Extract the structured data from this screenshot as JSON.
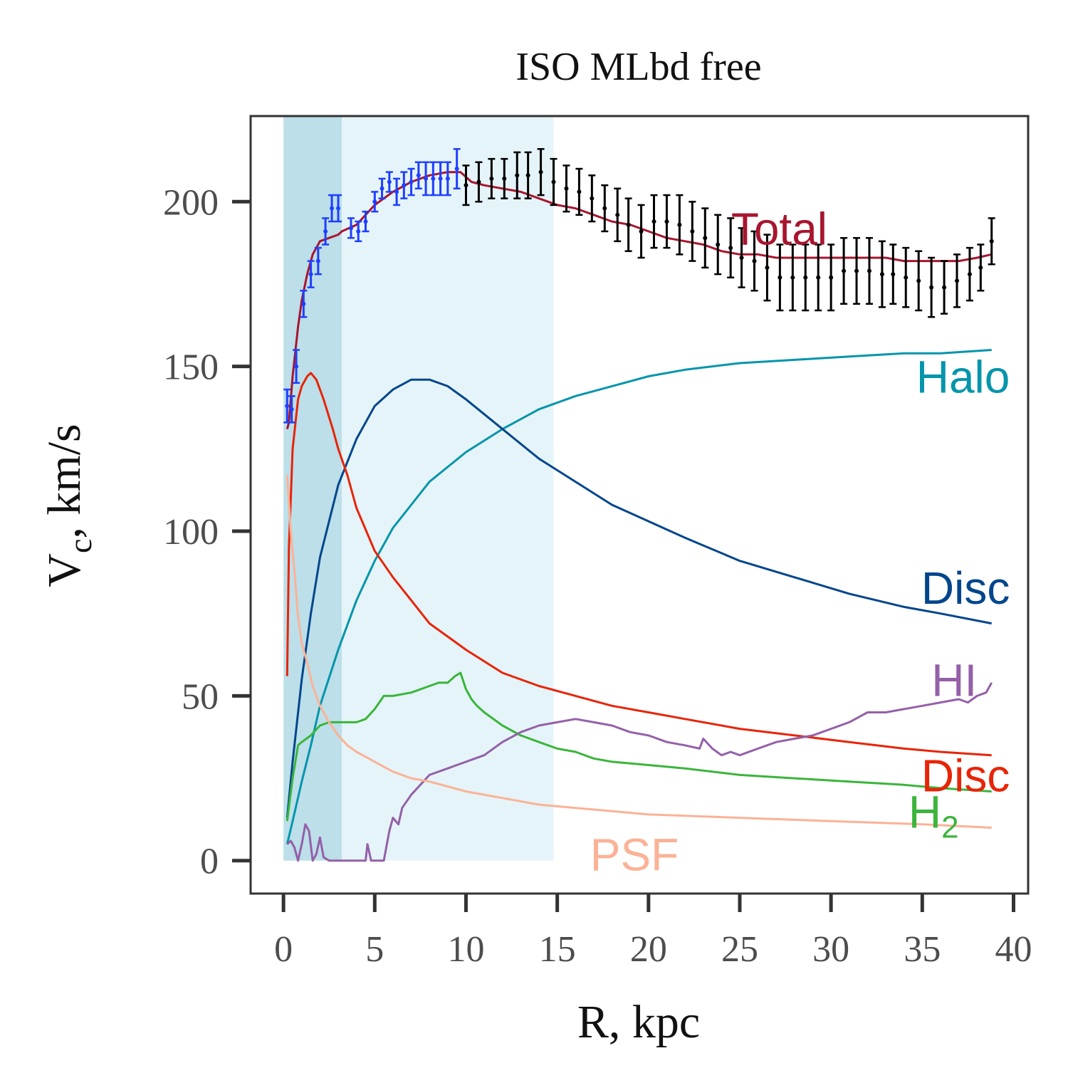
{
  "chart_data": {
    "type": "line",
    "title": "ISO MLbd free",
    "xlabel": "R, kpc",
    "ylabel_main": "V",
    "ylabel_sub": "c",
    "ylabel_rest": ", km/s",
    "xlim": [
      -1.8,
      40.8
    ],
    "ylim": [
      -10,
      226
    ],
    "xticks": [
      0,
      5,
      10,
      15,
      20,
      25,
      30,
      35,
      40
    ],
    "yticks": [
      0,
      50,
      100,
      150,
      200
    ],
    "grid": false,
    "legend": "none",
    "shaded_regions": [
      {
        "x0": 0,
        "x1": 3.2,
        "y0": 0,
        "y1": 226,
        "color": "#bcdfe9"
      },
      {
        "x0": 3.2,
        "x1": 14.8,
        "y0": 0,
        "y1": 226,
        "color": "#e5f4f8"
      }
    ],
    "observations_inner": {
      "color": "#1f3fff",
      "x": [
        0.2,
        0.45,
        0.7,
        1.1,
        1.5,
        1.9,
        2.3,
        2.65,
        3.0,
        3.7,
        4.1,
        4.5,
        5.0,
        5.4,
        5.8,
        6.2,
        6.6,
        7.0,
        7.4,
        7.8,
        8.2,
        8.6,
        9.0,
        9.5
      ],
      "y": [
        138,
        137,
        150,
        169,
        178,
        182,
        191,
        198,
        198,
        192,
        191,
        194,
        200,
        204,
        206,
        203,
        205,
        206,
        208,
        207,
        207,
        207,
        207,
        210
      ],
      "err": [
        5,
        4,
        5,
        4,
        4,
        4,
        4,
        4,
        4,
        3,
        3,
        3,
        3,
        3,
        3,
        4,
        4,
        4,
        4,
        5,
        5,
        5,
        5,
        6
      ]
    },
    "observations_outer": {
      "color": "#000000",
      "x": [
        10,
        10.7,
        11.4,
        12.1,
        12.8,
        13.4,
        14.1,
        14.8,
        15.5,
        16.2,
        16.9,
        17.6,
        18.3,
        18.9,
        19.6,
        20.3,
        21.0,
        21.7,
        22.4,
        23.1,
        23.8,
        24.5,
        25.1,
        25.8,
        26.5,
        27.2,
        27.9,
        28.6,
        29.3,
        30.0,
        30.7,
        31.4,
        32.1,
        32.8,
        33.4,
        34.1,
        34.8,
        35.5,
        36.2,
        36.9,
        37.6,
        38.2,
        38.8
      ],
      "y": [
        205,
        206,
        207,
        207,
        208,
        208,
        209,
        206,
        204,
        203,
        201,
        198,
        196,
        193,
        191,
        194,
        194,
        193,
        191,
        189,
        187,
        186,
        183,
        182,
        180,
        177,
        177,
        177,
        177,
        177,
        179,
        179,
        179,
        178,
        178,
        177,
        176,
        174,
        174,
        176,
        178,
        180,
        188
      ],
      "err": [
        6,
        6,
        6,
        6,
        7,
        7,
        7,
        7,
        7,
        7,
        7,
        7,
        8,
        8,
        8,
        8,
        8,
        9,
        9,
        9,
        9,
        9,
        9,
        9,
        10,
        10,
        10,
        10,
        10,
        10,
        10,
        10,
        10,
        10,
        9,
        9,
        9,
        9,
        8,
        8,
        8,
        7,
        7
      ]
    },
    "series": [
      {
        "name": "Total",
        "color": "#a8152e",
        "x": [
          0.2,
          0.3,
          0.5,
          0.8,
          1.0,
          1.3,
          1.6,
          2.0,
          2.5,
          3.0,
          3.2,
          4.0,
          5.0,
          6.0,
          7.0,
          8.0,
          9.0,
          9.7,
          10.3,
          11,
          12,
          13,
          14,
          15,
          16,
          17,
          18,
          19,
          20,
          21,
          22,
          23,
          24,
          25,
          26,
          27,
          28,
          29,
          30,
          31,
          32,
          33,
          34,
          35,
          36,
          37,
          38,
          38.8
        ],
        "y": [
          131,
          133,
          147,
          162,
          170,
          178,
          184,
          188,
          189,
          190,
          191,
          193,
          199,
          203,
          206,
          208,
          209,
          209,
          206,
          205,
          204,
          203,
          201,
          199,
          198,
          196,
          194,
          193,
          191,
          189,
          188,
          187,
          185,
          184,
          184,
          183,
          183,
          183,
          183,
          183,
          183,
          183,
          182,
          182,
          182,
          182,
          183,
          184
        ]
      },
      {
        "name": "Halo",
        "color": "#0595ab",
        "x": [
          0.2,
          0.5,
          1,
          1.5,
          2,
          3,
          4,
          5,
          6,
          7,
          8,
          10,
          12,
          14,
          16,
          18,
          20,
          22,
          25,
          28,
          31,
          34,
          36,
          38.8
        ],
        "y": [
          5,
          12,
          24,
          35,
          47,
          64,
          79,
          91,
          101,
          108,
          115,
          124,
          131,
          137,
          141,
          144,
          147,
          149,
          151,
          152,
          153,
          154,
          154,
          155
        ]
      },
      {
        "name": "Disc",
        "color": "#02468c",
        "x": [
          0.2,
          0.5,
          1,
          1.5,
          2,
          3,
          4,
          5,
          6,
          7,
          7.5,
          8,
          9,
          10,
          12,
          14,
          16,
          18,
          20,
          22,
          25,
          28,
          31,
          34,
          36,
          38.8
        ],
        "y": [
          13,
          30,
          55,
          75,
          92,
          114,
          128,
          138,
          143,
          146,
          146,
          146,
          144,
          140,
          131,
          122,
          115,
          108,
          103,
          98,
          91,
          86,
          81,
          77,
          75,
          72
        ]
      },
      {
        "name": "Disc",
        "color": "#e82408",
        "x": [
          0.2,
          0.3,
          0.5,
          0.8,
          1.0,
          1.3,
          1.5,
          1.8,
          2.2,
          2.7,
          3.0,
          3.5,
          4.0,
          5.0,
          6.0,
          7.0,
          8.0,
          10,
          12,
          14,
          16,
          18,
          20,
          22,
          25,
          28,
          31,
          34,
          36,
          38.8
        ],
        "y": [
          56,
          95,
          125,
          140,
          144,
          147,
          148,
          146,
          140,
          131,
          125,
          117,
          107,
          94,
          86,
          79,
          72,
          64,
          57,
          53,
          50,
          47,
          45,
          43,
          40,
          38,
          36,
          34,
          33,
          32
        ]
      },
      {
        "name": "H2",
        "color": "#3bb53b",
        "x": [
          0.2,
          0.5,
          0.8,
          1.0,
          1.5,
          2.0,
          2.5,
          3.0,
          3.5,
          4.0,
          4.5,
          5.0,
          5.5,
          6.0,
          7.0,
          8.0,
          8.5,
          9.0,
          9.4,
          9.7,
          10.0,
          10.3,
          10.6,
          11,
          12,
          13,
          14,
          15,
          16,
          17,
          18,
          20,
          22,
          25,
          28,
          31,
          34,
          36,
          38.8
        ],
        "y": [
          12,
          25,
          35,
          36,
          38,
          41,
          42,
          42,
          42,
          42,
          43,
          46,
          50,
          50,
          51,
          53,
          54,
          54,
          56,
          57,
          52,
          49,
          47,
          45,
          41,
          38,
          36,
          34,
          33,
          31,
          30,
          29,
          28,
          26,
          25,
          24,
          23,
          22,
          21
        ]
      },
      {
        "name": "HI",
        "color": "#9460a8",
        "x": [
          0.2,
          0.4,
          0.6,
          0.8,
          1.0,
          1.2,
          1.4,
          1.6,
          1.8,
          2.0,
          2.2,
          2.5,
          2.8,
          3.0,
          3.5,
          4.0,
          4.5,
          4.6,
          4.8,
          5.0,
          5.2,
          5.5,
          5.8,
          6.0,
          6.3,
          6.5,
          7.0,
          8.0,
          9.0,
          10,
          11,
          12,
          13,
          14,
          15,
          16,
          17,
          18,
          19,
          20,
          21,
          22,
          22.8,
          23,
          23.5,
          24,
          24.5,
          25,
          26,
          27,
          28,
          29,
          30,
          31,
          32,
          33,
          34,
          35,
          36,
          37,
          37.5,
          38,
          38.5,
          38.8
        ],
        "y": [
          5,
          6,
          4,
          0,
          5,
          11,
          9,
          0,
          2,
          7,
          1,
          0,
          0,
          0,
          0,
          0,
          0,
          5,
          0,
          0,
          0,
          0,
          9,
          13,
          11,
          16,
          20,
          26,
          28,
          30,
          32,
          36,
          39,
          41,
          42,
          43,
          42,
          41,
          39,
          38,
          36,
          35,
          34,
          37,
          34,
          32,
          33,
          32,
          34,
          36,
          37,
          38,
          40,
          42,
          45,
          45,
          46,
          47,
          48,
          49,
          48,
          50,
          51,
          54
        ]
      },
      {
        "name": "PSF",
        "color": "#fbb296",
        "x": [
          0.2,
          0.4,
          0.6,
          0.8,
          1.0,
          1.3,
          1.6,
          2.0,
          2.5,
          3.0,
          3.5,
          4,
          5,
          6,
          7,
          8,
          10,
          12,
          14,
          16,
          18,
          20,
          25,
          30,
          35,
          38.8
        ],
        "y": [
          117,
          100,
          88,
          74,
          66,
          60,
          53,
          47,
          42,
          38,
          35,
          33,
          30,
          27,
          25,
          24,
          21,
          19,
          17,
          16,
          15,
          14,
          13,
          12,
          11,
          10
        ]
      }
    ],
    "annotations": [
      {
        "text": "Total",
        "x": 29.8,
        "y": 187,
        "color": "#a8152e",
        "anchor": "end"
      },
      {
        "text": "Halo",
        "x": 39.8,
        "y": 142,
        "color": "#0595ab",
        "anchor": "end"
      },
      {
        "text": "Disc",
        "x": 39.8,
        "y": 78,
        "color": "#02468c",
        "anchor": "end"
      },
      {
        "text": "HI",
        "x": 38.0,
        "y": 50,
        "color": "#9460a8",
        "anchor": "end"
      },
      {
        "text": "Disc",
        "x": 39.8,
        "y": 21,
        "color": "#e82408",
        "anchor": "end"
      },
      {
        "text": "H",
        "sub": "2",
        "x": 37.0,
        "y": 10,
        "color": "#3bb53b",
        "anchor": "end"
      },
      {
        "text": "PSF",
        "x": 16.8,
        "y": -3,
        "color": "#fbb296",
        "anchor": "start"
      }
    ]
  }
}
